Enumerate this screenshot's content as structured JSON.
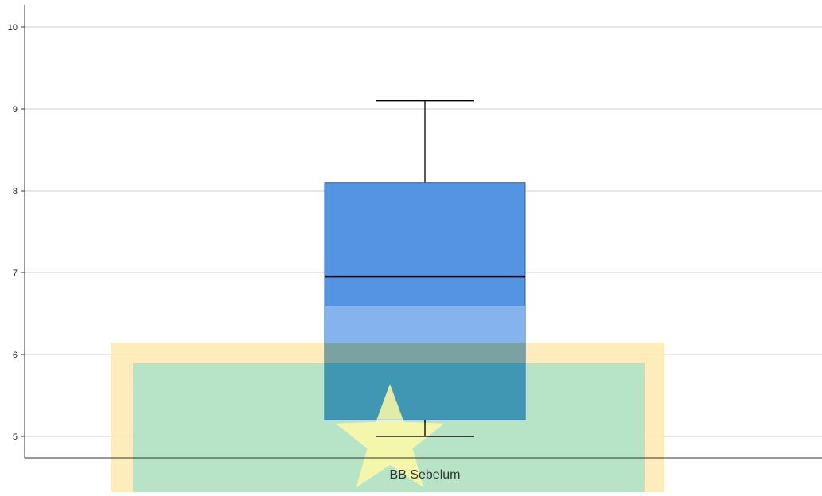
{
  "chart_data": {
    "type": "box",
    "title": "",
    "xlabel": "",
    "ylabel": "",
    "ylim": [
      4.73,
      10.3
    ],
    "yticks": [
      "5",
      "6",
      "7",
      "8",
      "9",
      "10"
    ],
    "grid": true,
    "categories": [
      "BB Sebelum"
    ],
    "series": [
      {
        "category": "BB Sebelum",
        "min": 5.0,
        "q1": 5.2,
        "median": 6.95,
        "q3": 8.1,
        "max": 9.1
      }
    ],
    "colors": {
      "box_fill": "#5594e3",
      "box_stroke": "#2e5e9c",
      "median": "#000000",
      "whisker": "#000000",
      "grid": "#cfcfcf",
      "axis": "#333333"
    },
    "overlays": {
      "outer_band": "#ffe9b0",
      "inner_band": "#b3e3c6",
      "star": "#fffaa6",
      "highlight_band": "#8bb6ee"
    }
  }
}
